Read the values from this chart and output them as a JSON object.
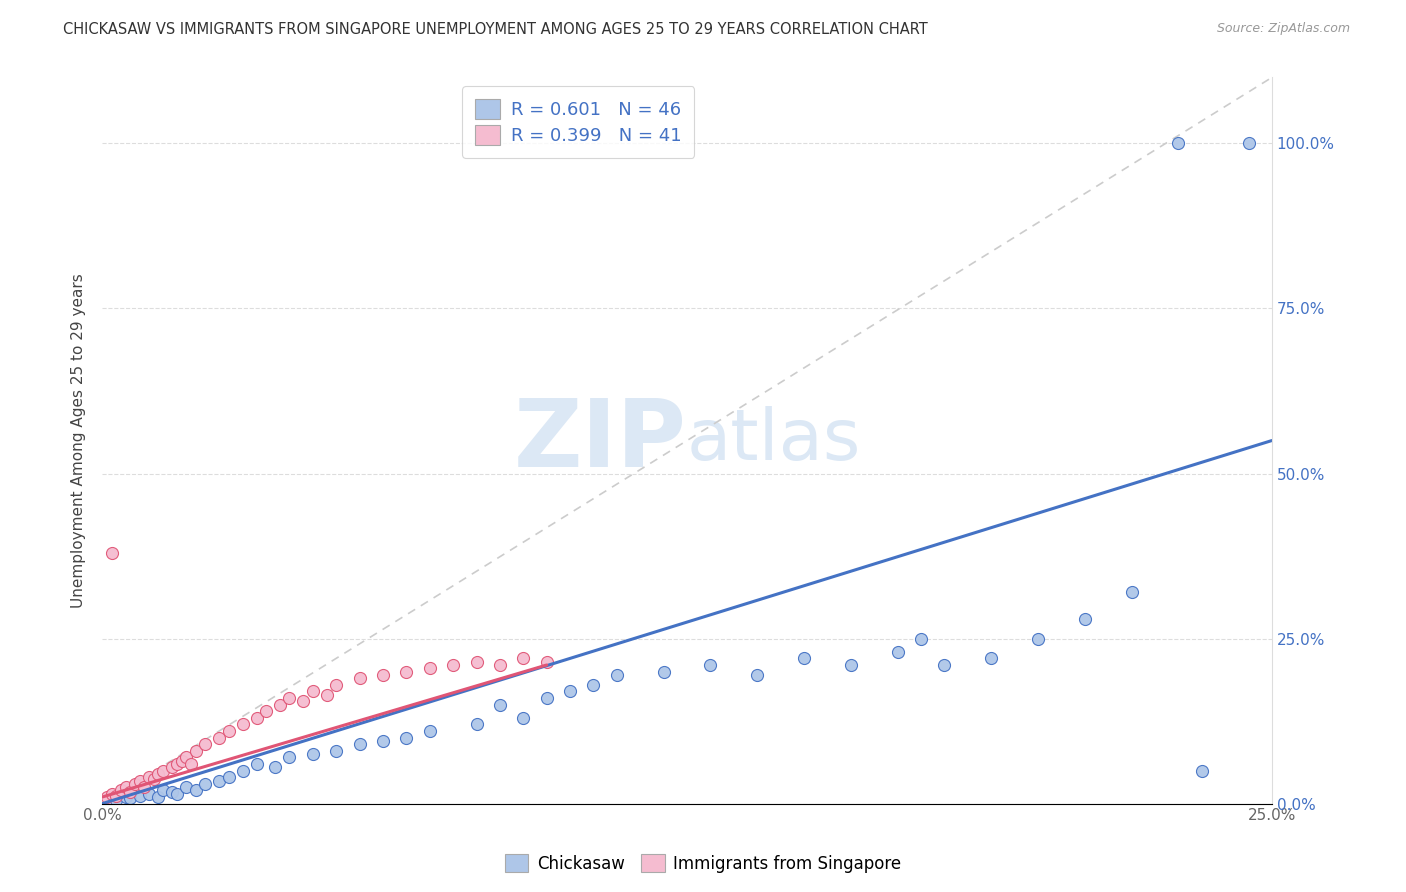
{
  "title": "CHICKASAW VS IMMIGRANTS FROM SINGAPORE UNEMPLOYMENT AMONG AGES 25 TO 29 YEARS CORRELATION CHART",
  "source": "Source: ZipAtlas.com",
  "ylabel": "Unemployment Among Ages 25 to 29 years",
  "legend_label1": "Chickasaw",
  "legend_label2": "Immigrants from Singapore",
  "R1": 0.601,
  "N1": 46,
  "R2": 0.399,
  "N2": 41,
  "xmin": 0.0,
  "xmax": 0.25,
  "ymin": 0.0,
  "ymax": 1.1,
  "ytick_positions": [
    0.0,
    0.25,
    0.5,
    0.75,
    1.0
  ],
  "ytick_labels": [
    "0.0%",
    "25.0%",
    "50.0%",
    "75.0%",
    "100.0%"
  ],
  "xtick_positions": [
    0.0,
    0.05,
    0.1,
    0.15,
    0.2,
    0.25
  ],
  "xtick_labels": [
    "0.0%",
    "",
    "",
    "",
    "",
    "25.0%"
  ],
  "color_blue": "#aec6e8",
  "color_pink": "#f5bcd0",
  "line_blue": "#4472c4",
  "line_pink": "#e05575",
  "line_diag_color": "#cccccc",
  "watermark_color": "#dce8f5",
  "background": "#ffffff",
  "chickasaw_x": [
    0.003,
    0.005,
    0.006,
    0.008,
    0.01,
    0.012,
    0.013,
    0.015,
    0.016,
    0.018,
    0.02,
    0.022,
    0.025,
    0.027,
    0.03,
    0.033,
    0.037,
    0.04,
    0.045,
    0.05,
    0.055,
    0.06,
    0.065,
    0.07,
    0.08,
    0.085,
    0.09,
    0.095,
    0.1,
    0.105,
    0.11,
    0.12,
    0.13,
    0.14,
    0.15,
    0.16,
    0.17,
    0.175,
    0.18,
    0.19,
    0.2,
    0.21,
    0.22,
    0.23,
    0.235,
    0.245
  ],
  "chickasaw_y": [
    0.005,
    0.01,
    0.008,
    0.012,
    0.015,
    0.01,
    0.02,
    0.018,
    0.015,
    0.025,
    0.02,
    0.03,
    0.035,
    0.04,
    0.05,
    0.06,
    0.055,
    0.07,
    0.075,
    0.08,
    0.09,
    0.095,
    0.1,
    0.11,
    0.12,
    0.15,
    0.13,
    0.16,
    0.17,
    0.18,
    0.195,
    0.2,
    0.21,
    0.195,
    0.22,
    0.21,
    0.23,
    0.25,
    0.21,
    0.22,
    0.25,
    0.28,
    0.32,
    1.0,
    0.05,
    1.0
  ],
  "singapore_x": [
    0.001,
    0.002,
    0.003,
    0.004,
    0.005,
    0.006,
    0.007,
    0.008,
    0.009,
    0.01,
    0.011,
    0.012,
    0.013,
    0.015,
    0.016,
    0.017,
    0.018,
    0.019,
    0.02,
    0.022,
    0.025,
    0.027,
    0.03,
    0.033,
    0.035,
    0.038,
    0.04,
    0.043,
    0.045,
    0.048,
    0.05,
    0.055,
    0.06,
    0.065,
    0.07,
    0.075,
    0.08,
    0.085,
    0.09,
    0.095,
    0.002
  ],
  "singapore_y": [
    0.01,
    0.015,
    0.012,
    0.02,
    0.025,
    0.018,
    0.03,
    0.035,
    0.025,
    0.04,
    0.038,
    0.045,
    0.05,
    0.055,
    0.06,
    0.065,
    0.07,
    0.06,
    0.08,
    0.09,
    0.1,
    0.11,
    0.12,
    0.13,
    0.14,
    0.15,
    0.16,
    0.155,
    0.17,
    0.165,
    0.18,
    0.19,
    0.195,
    0.2,
    0.205,
    0.21,
    0.215,
    0.21,
    0.22,
    0.215,
    0.38
  ],
  "blue_trend_x": [
    0.0,
    0.25
  ],
  "blue_trend_y": [
    0.0,
    0.55
  ],
  "pink_trend_x": [
    0.0,
    0.095
  ],
  "pink_trend_y": [
    0.01,
    0.21
  ]
}
